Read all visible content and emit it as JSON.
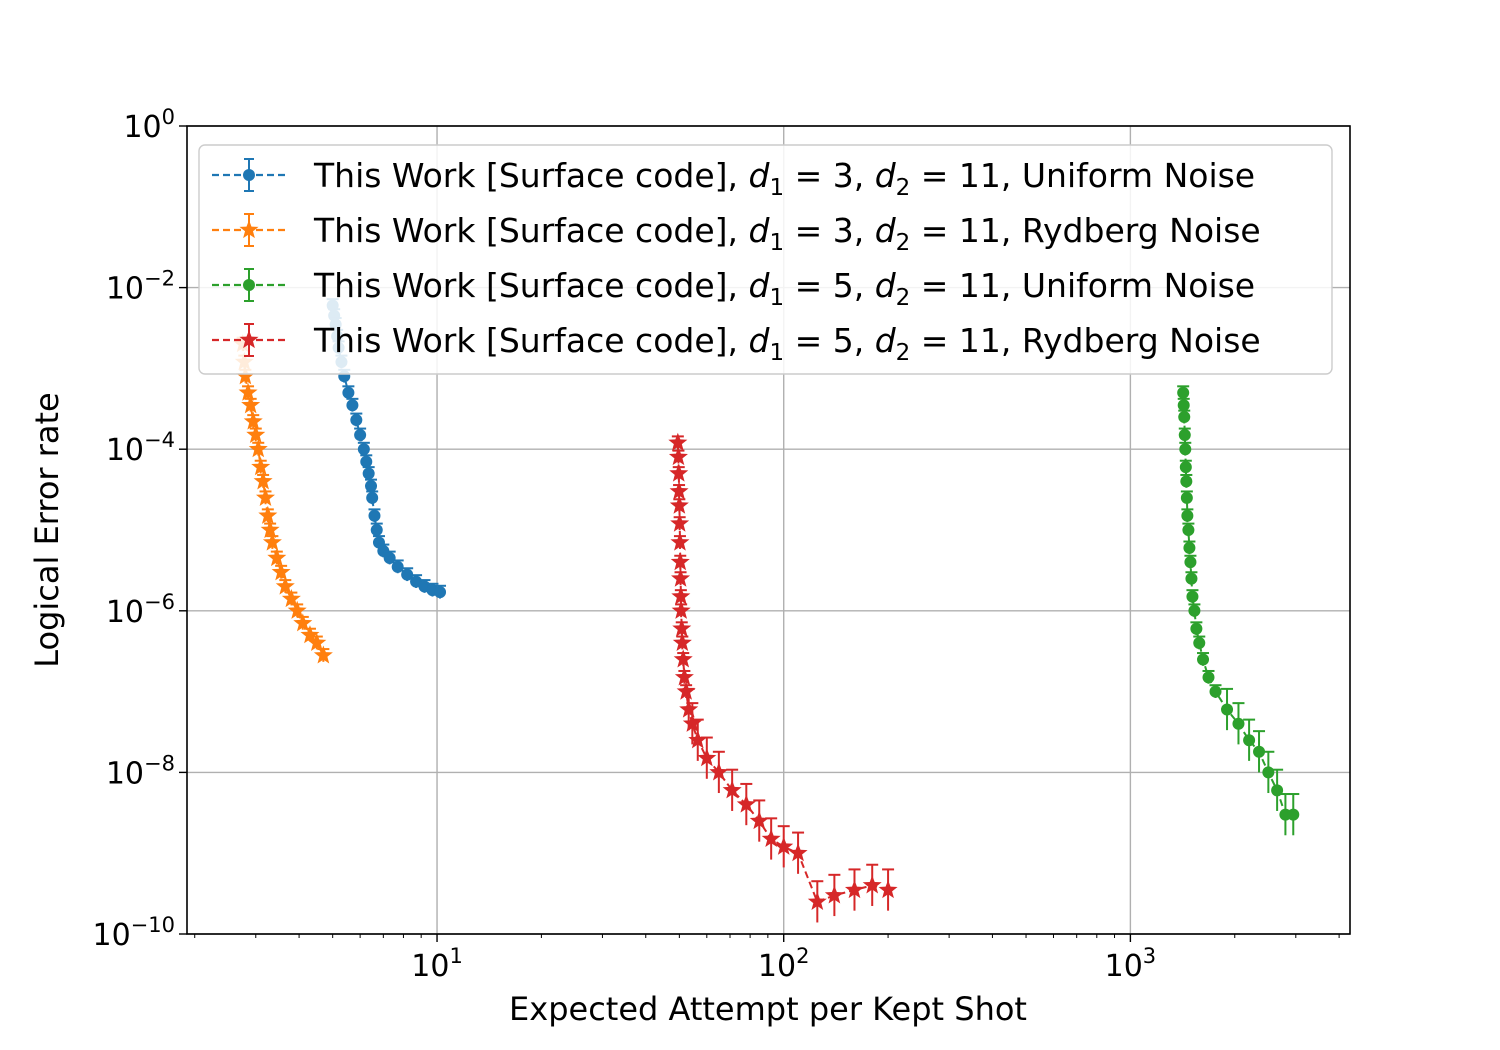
{
  "chart_data": {
    "type": "scatter",
    "xlabel": "Expected Attempt per Kept Shot",
    "ylabel": "Logical Error rate",
    "xscale": "log",
    "yscale": "log",
    "xlim": [
      1.9,
      4300
    ],
    "ylim": [
      1e-10,
      1
    ],
    "grid": true,
    "legend_position": "top",
    "x_ticks": [
      {
        "value": 10,
        "base": "10",
        "exp": "1"
      },
      {
        "value": 100,
        "base": "10",
        "exp": "2"
      },
      {
        "value": 1000,
        "base": "10",
        "exp": "3"
      }
    ],
    "y_ticks": [
      {
        "value": 1,
        "base": "10",
        "exp": "0"
      },
      {
        "value": 0.01,
        "base": "10",
        "exp": "−2"
      },
      {
        "value": 0.0001,
        "base": "10",
        "exp": "−4"
      },
      {
        "value": 1e-06,
        "base": "10",
        "exp": "−6"
      },
      {
        "value": 1e-08,
        "base": "10",
        "exp": "−8"
      },
      {
        "value": 1e-10,
        "base": "10",
        "exp": "−10"
      }
    ],
    "series": [
      {
        "name_parts": [
          "This Work [Surface code], ",
          "d",
          "1",
          " = 3, ",
          "d",
          "2",
          " = 11, Uniform Noise"
        ],
        "name": "This Work [Surface code], d1 = 3, d2 = 11, Uniform Noise",
        "color": "#1f77b4",
        "marker": "circle",
        "points": [
          [
            5.0,
            0.006
          ],
          [
            5.05,
            0.0045
          ],
          [
            5.1,
            0.0035
          ],
          [
            5.15,
            0.0025
          ],
          [
            5.2,
            0.0018
          ],
          [
            5.3,
            0.0012
          ],
          [
            5.4,
            0.0008
          ],
          [
            5.55,
            0.0005
          ],
          [
            5.7,
            0.00035
          ],
          [
            5.85,
            0.00023
          ],
          [
            6.0,
            0.00015
          ],
          [
            6.15,
            0.0001
          ],
          [
            6.25,
            7e-05
          ],
          [
            6.35,
            5e-05
          ],
          [
            6.45,
            3.5e-05
          ],
          [
            6.5,
            2.5e-05
          ],
          [
            6.6,
            1.5e-05
          ],
          [
            6.7,
            1e-05
          ],
          [
            6.8,
            7e-06
          ],
          [
            7.0,
            5.5e-06
          ],
          [
            7.3,
            4.5e-06
          ],
          [
            7.7,
            3.5e-06
          ],
          [
            8.2,
            2.8e-06
          ],
          [
            8.7,
            2.3e-06
          ],
          [
            9.2,
            2e-06
          ],
          [
            9.7,
            1.8e-06
          ],
          [
            10.2,
            1.7e-06
          ]
        ]
      },
      {
        "name_parts": [
          "This Work [Surface code], ",
          "d",
          "1",
          " = 3, ",
          "d",
          "2",
          " = 11, Rydberg Noise"
        ],
        "name": "This Work [Surface code], d1 = 3, d2 = 11, Rydberg Noise",
        "color": "#ff7f0e",
        "marker": "star",
        "points": [
          [
            2.75,
            0.002
          ],
          [
            2.78,
            0.0012
          ],
          [
            2.8,
            0.0008
          ],
          [
            2.85,
            0.0005
          ],
          [
            2.9,
            0.00035
          ],
          [
            2.95,
            0.00022
          ],
          [
            3.0,
            0.00015
          ],
          [
            3.05,
            0.0001
          ],
          [
            3.1,
            6e-05
          ],
          [
            3.15,
            4e-05
          ],
          [
            3.2,
            2.5e-05
          ],
          [
            3.25,
            1.5e-05
          ],
          [
            3.3,
            1e-05
          ],
          [
            3.35,
            7e-06
          ],
          [
            3.45,
            4.5e-06
          ],
          [
            3.55,
            3e-06
          ],
          [
            3.65,
            2e-06
          ],
          [
            3.8,
            1.4e-06
          ],
          [
            3.95,
            1e-06
          ],
          [
            4.1,
            7e-07
          ],
          [
            4.3,
            5e-07
          ],
          [
            4.5,
            4e-07
          ],
          [
            4.7,
            2.8e-07
          ]
        ]
      },
      {
        "name_parts": [
          "This Work [Surface code], ",
          "d",
          "1",
          " = 5, ",
          "d",
          "2",
          " = 11, Uniform Noise"
        ],
        "name": "This Work [Surface code], d1 = 5, d2 = 11, Uniform Noise",
        "color": "#2ca02c",
        "marker": "circle",
        "points": [
          [
            1420,
            0.0005
          ],
          [
            1425,
            0.00035
          ],
          [
            1430,
            0.00025
          ],
          [
            1435,
            0.00015
          ],
          [
            1440,
            0.0001
          ],
          [
            1445,
            6e-05
          ],
          [
            1450,
            4e-05
          ],
          [
            1455,
            2.5e-05
          ],
          [
            1460,
            1.5e-05
          ],
          [
            1470,
            1e-05
          ],
          [
            1480,
            6e-06
          ],
          [
            1490,
            4e-06
          ],
          [
            1500,
            2.5e-06
          ],
          [
            1510,
            1.5e-06
          ],
          [
            1530,
            1e-06
          ],
          [
            1550,
            6e-07
          ],
          [
            1580,
            4e-07
          ],
          [
            1620,
            2.5e-07
          ],
          [
            1680,
            1.5e-07
          ],
          [
            1760,
            1e-07
          ],
          [
            1900,
            6e-08
          ],
          [
            2050,
            4e-08
          ],
          [
            2200,
            2.5e-08
          ],
          [
            2350,
            1.8e-08
          ],
          [
            2500,
            1e-08
          ],
          [
            2650,
            6e-09
          ],
          [
            2800,
            3e-09
          ],
          [
            2950,
            3e-09
          ]
        ]
      },
      {
        "name_parts": [
          "This Work [Surface code], ",
          "d",
          "1",
          " = 5, ",
          "d",
          "2",
          " = 11, Rydberg Noise"
        ],
        "name": "This Work [Surface code], d1 = 5, d2 = 11, Rydberg Noise",
        "color": "#d62728",
        "marker": "star",
        "points": [
          [
            49.5,
            0.00012
          ],
          [
            49.7,
            8e-05
          ],
          [
            49.8,
            5e-05
          ],
          [
            49.9,
            3e-05
          ],
          [
            50.0,
            2e-05
          ],
          [
            50.1,
            1.2e-05
          ],
          [
            50.2,
            7e-06
          ],
          [
            50.3,
            4e-06
          ],
          [
            50.4,
            2.5e-06
          ],
          [
            50.5,
            1.5e-06
          ],
          [
            50.6,
            1e-06
          ],
          [
            50.8,
            6e-07
          ],
          [
            51.0,
            4e-07
          ],
          [
            51.3,
            2.5e-07
          ],
          [
            51.7,
            1.5e-07
          ],
          [
            52.3,
            1e-07
          ],
          [
            53.2,
            6e-08
          ],
          [
            54.5,
            4e-08
          ],
          [
            56.5,
            2.5e-08
          ],
          [
            60,
            1.5e-08
          ],
          [
            65,
            1e-08
          ],
          [
            71,
            6e-09
          ],
          [
            78,
            4e-09
          ],
          [
            85,
            2.5e-09
          ],
          [
            92,
            1.5e-09
          ],
          [
            100,
            1.2e-09
          ],
          [
            110,
            1e-09
          ],
          [
            125,
            2.5e-10
          ],
          [
            140,
            3e-10
          ],
          [
            160,
            3.5e-10
          ],
          [
            180,
            4e-10
          ],
          [
            200,
            3.5e-10
          ]
        ]
      }
    ]
  }
}
